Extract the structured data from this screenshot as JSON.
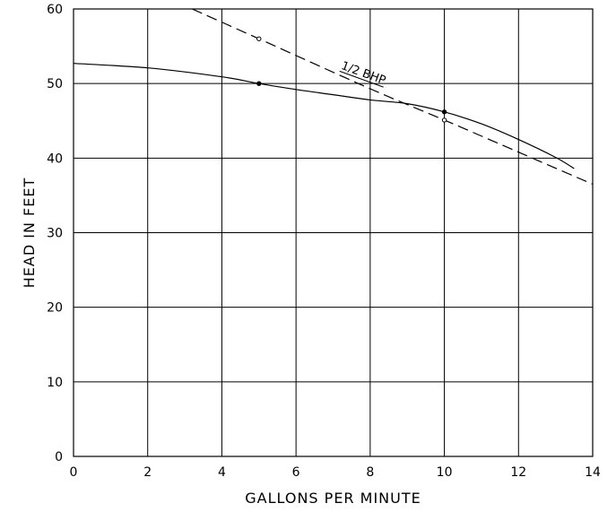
{
  "chart_data": {
    "type": "line",
    "xlabel": "GALLONS PER MINUTE",
    "ylabel": "HEAD IN FEET",
    "xlim": [
      0,
      14
    ],
    "ylim": [
      0,
      60
    ],
    "xticks": [
      "0",
      "2",
      "4",
      "6",
      "8",
      "10",
      "12",
      "14"
    ],
    "yticks": [
      "0",
      "10",
      "20",
      "30",
      "40",
      "50",
      "60"
    ],
    "grid": true,
    "series": [
      {
        "style": "solid",
        "x": [
          0,
          2,
          4,
          5,
          6,
          7,
          8,
          9,
          10,
          11,
          12,
          13,
          13.5
        ],
        "y": [
          52.7,
          52.1,
          50.9,
          50.0,
          49.2,
          48.5,
          47.8,
          47.3,
          46.2,
          44.6,
          42.5,
          40.1,
          38.6
        ],
        "markers": [
          {
            "x": 5,
            "y": 50.0
          },
          {
            "x": 10,
            "y": 46.2
          }
        ]
      },
      {
        "name": "1/2 BHP",
        "style": "dashed",
        "x": [
          3.2,
          5,
          8,
          10,
          12,
          14
        ],
        "y": [
          60.0,
          56.0,
          49.3,
          45.1,
          40.8,
          36.5
        ],
        "markers": [
          {
            "x": 5,
            "y": 56.0
          },
          {
            "x": 10,
            "y": 45.1
          }
        ]
      }
    ],
    "annotations": [
      {
        "text": "1/2 BHP",
        "x": 7.2,
        "y": 52.0
      }
    ]
  }
}
